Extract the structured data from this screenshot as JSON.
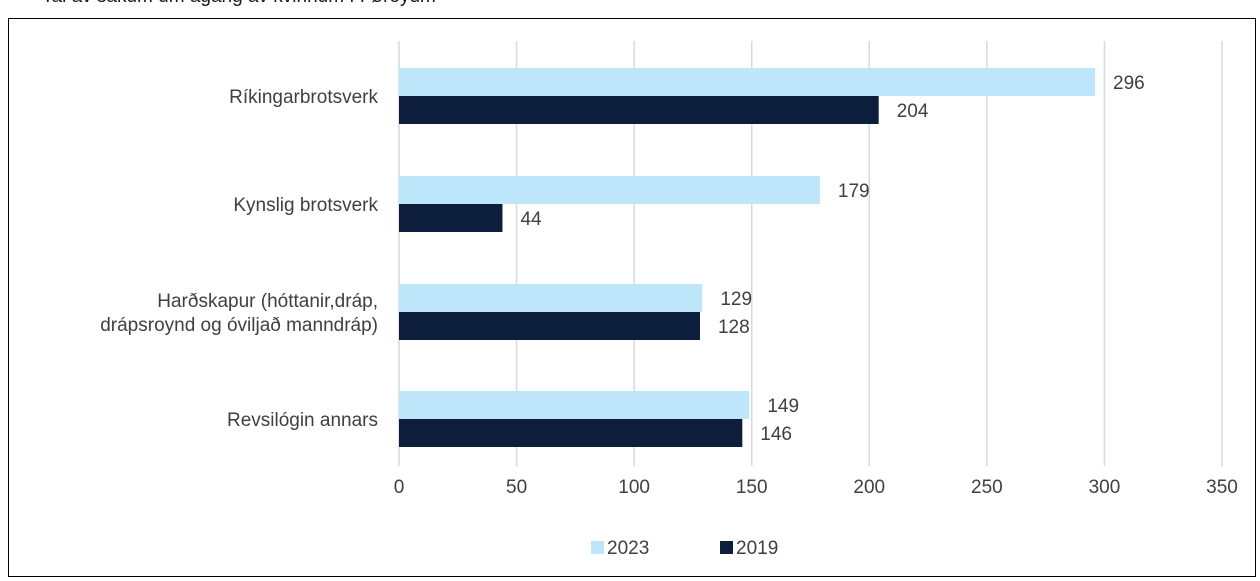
{
  "header": {
    "clipped_title": "Tal av sakum um ágang av kvinnum í Føroyum"
  },
  "colors": {
    "series_2023": "#bde6fb",
    "series_2019": "#0c1e3c",
    "grid": "#d9d9d9",
    "text": "#404040"
  },
  "chart_data": {
    "type": "bar",
    "orientation": "horizontal",
    "categories": [
      "Ríkingarbrotsverk",
      "Kynslig brotsverk",
      "Harðskapur (hóttanir,dráp, drápsroynd og óviljað manndráp)",
      "Revsilógin annars"
    ],
    "category_label_lines": [
      [
        "Ríkingarbrotsverk"
      ],
      [
        "Kynslig brotsverk"
      ],
      [
        "Harðskapur (hóttanir,dráp,",
        "drápsroynd og óviljað manndráp)"
      ],
      [
        "Revsilógin annars"
      ]
    ],
    "series": [
      {
        "name": "2023",
        "values": [
          296,
          179,
          129,
          149
        ],
        "color": "#bde6fb"
      },
      {
        "name": "2019",
        "values": [
          204,
          44,
          128,
          146
        ],
        "color": "#0c1e3c"
      }
    ],
    "xlim": [
      0,
      350
    ],
    "xticks": [
      0,
      50,
      100,
      150,
      200,
      250,
      300,
      350
    ],
    "grid": true,
    "legend_position": "bottom",
    "title": "",
    "xlabel": "",
    "ylabel": ""
  }
}
